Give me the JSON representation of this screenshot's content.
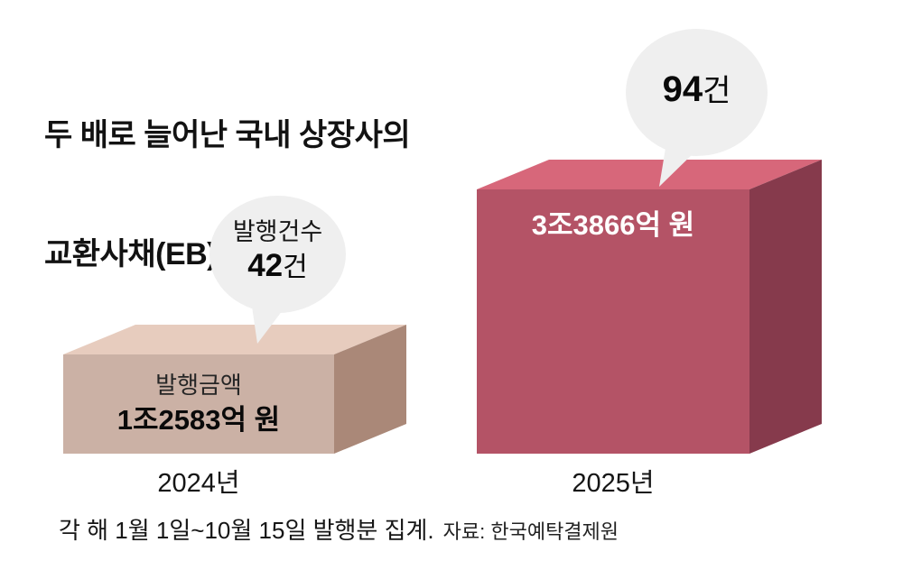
{
  "title": {
    "line1": "두 배로 늘어난 국내 상장사의",
    "line2": "교환사채(EB) 발행"
  },
  "chart_data": {
    "type": "bar",
    "variant": "pictorial-3d-box-comparison",
    "title": "두 배로 늘어난 국내 상장사의 교환사채(EB) 발행",
    "categories": [
      "2024년",
      "2025년"
    ],
    "series": [
      {
        "name": "발행금액 (억 원)",
        "values": [
          12583,
          33866
        ],
        "labels": [
          "1조2583억 원",
          "3조3866억 원"
        ]
      },
      {
        "name": "발행건수 (건)",
        "values": [
          42,
          94
        ],
        "labels": [
          "42건",
          "94건"
        ]
      }
    ],
    "note": "각 해 1월 1일~10월 15일 발행분 집계.",
    "source": "자료: 한국예탁결제원",
    "legend_position": "none",
    "grid": false
  },
  "bars": {
    "y2024": {
      "year": "2024년",
      "amount_title": "발행금액",
      "amount_value": "1조2583억 원",
      "bubble": {
        "label": "발행건수",
        "count": "42",
        "unit": "건"
      },
      "colors": {
        "front": "#cbb1a5",
        "top": "#e7ccbe",
        "side": "#aa8878"
      }
    },
    "y2025": {
      "year": "2025년",
      "amount_value": "3조3866억 원",
      "bubble": {
        "count": "94",
        "unit": "건"
      },
      "colors": {
        "front": "#b45366",
        "top": "#d7677a",
        "side": "#863a4c"
      }
    }
  },
  "bubble_color": "#efefef",
  "footer": {
    "note": "각 해 1월 1일~10월 15일 발행분 집계.",
    "source": "자료: 한국예탁결제원"
  }
}
